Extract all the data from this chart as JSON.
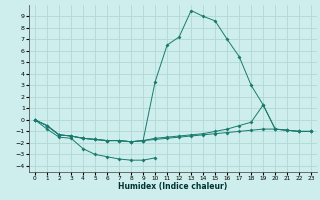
{
  "xlabel": "Humidex (Indice chaleur)",
  "bg_color": "#ceeeed",
  "grid_color": "#b0d8d5",
  "line_color": "#1a7a6e",
  "xlim": [
    -0.5,
    23.5
  ],
  "ylim": [
    -4.5,
    10.0
  ],
  "xticks": [
    0,
    1,
    2,
    3,
    4,
    5,
    6,
    7,
    8,
    9,
    10,
    11,
    12,
    13,
    14,
    15,
    16,
    17,
    18,
    19,
    20,
    21,
    22,
    23
  ],
  "yticks": [
    -4,
    -3,
    -2,
    -1,
    0,
    1,
    2,
    3,
    4,
    5,
    6,
    7,
    8,
    9
  ],
  "series": [
    {
      "x": [
        0,
        1,
        2,
        3,
        4,
        5,
        6,
        7,
        8,
        9,
        10,
        11,
        12,
        13,
        14,
        15,
        16,
        17,
        18,
        19,
        20,
        21,
        22,
        23
      ],
      "y": [
        0,
        -0.5,
        -1.3,
        -1.4,
        -1.6,
        -1.7,
        -1.8,
        -1.8,
        -1.9,
        -1.8,
        3.3,
        6.5,
        7.2,
        9.5,
        9.0,
        8.6,
        7.0,
        5.5,
        3.0,
        1.3,
        -0.8,
        -0.9,
        -1.0,
        -1.0
      ]
    },
    {
      "x": [
        0,
        1,
        2,
        3,
        4,
        5,
        6,
        7,
        8,
        9,
        10,
        11,
        12,
        13,
        14,
        15,
        16,
        17,
        18,
        19,
        20,
        21,
        22,
        23
      ],
      "y": [
        0,
        -0.5,
        -1.3,
        -1.4,
        -1.6,
        -1.7,
        -1.8,
        -1.8,
        -1.9,
        -1.8,
        -1.6,
        -1.5,
        -1.4,
        -1.3,
        -1.2,
        -1.0,
        -0.8,
        -0.5,
        -0.2,
        1.3,
        -0.8,
        -0.9,
        -1.0,
        -1.0
      ]
    },
    {
      "x": [
        0,
        1,
        2,
        3,
        4,
        5,
        6,
        7,
        8,
        9,
        10,
        11,
        12,
        13,
        14,
        15,
        16,
        17,
        18,
        19,
        20,
        21,
        22,
        23
      ],
      "y": [
        0,
        -0.5,
        -1.3,
        -1.4,
        -1.6,
        -1.7,
        -1.8,
        -1.8,
        -1.9,
        -1.8,
        -1.7,
        -1.6,
        -1.5,
        -1.4,
        -1.3,
        -1.2,
        -1.1,
        -1.0,
        -0.9,
        -0.8,
        -0.8,
        -0.9,
        -1.0,
        -1.0
      ]
    },
    {
      "x": [
        0,
        1,
        2,
        3,
        4,
        5,
        6,
        7,
        8,
        9,
        10
      ],
      "y": [
        0,
        -0.8,
        -1.5,
        -1.6,
        -2.5,
        -3.0,
        -3.2,
        -3.4,
        -3.5,
        -3.5,
        -3.3
      ]
    }
  ]
}
